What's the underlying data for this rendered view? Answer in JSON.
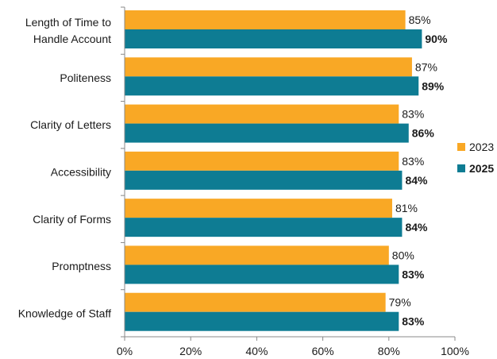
{
  "chart_data": {
    "type": "bar",
    "orientation": "horizontal",
    "categories": [
      [
        "Length of Time to",
        "Handle Account"
      ],
      [
        "Politeness"
      ],
      [
        "Clarity of Letters"
      ],
      [
        "Accessibility"
      ],
      [
        "Clarity of Forms"
      ],
      [
        "Promptness"
      ],
      [
        "Knowledge of Staff"
      ]
    ],
    "series": [
      {
        "name": "2023",
        "values": [
          85,
          87,
          83,
          83,
          81,
          80,
          79
        ],
        "color": "#F9A825",
        "label_bold": false
      },
      {
        "name": "2025",
        "values": [
          90,
          89,
          86,
          84,
          84,
          83,
          83
        ],
        "color": "#0E7C93",
        "label_bold": true
      }
    ],
    "value_suffix": "%",
    "xlim": [
      0,
      100
    ],
    "x_ticks": [
      0,
      20,
      40,
      60,
      80,
      100
    ],
    "x_tick_labels": [
      "0%",
      "20%",
      "40%",
      "60%",
      "80%",
      "100%"
    ],
    "grid": false,
    "legend_position": "right"
  }
}
